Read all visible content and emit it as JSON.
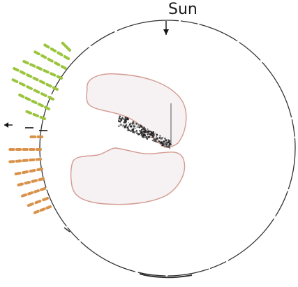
{
  "sun_label": "Sun",
  "colors": {
    "background": "#ffffff",
    "circle_outline": "#333333",
    "lobe_fill": "#f6f1f3",
    "lobe_outline": "#d39a8f",
    "field_lines_green": "#9bc53d",
    "field_lines_orange": "#d9924a",
    "speckle": "#222222",
    "arrow": "#111111"
  },
  "icons": {
    "sun_direction_marker": "arrow-down-icon",
    "axis_marker": "arrow-left-icon"
  }
}
